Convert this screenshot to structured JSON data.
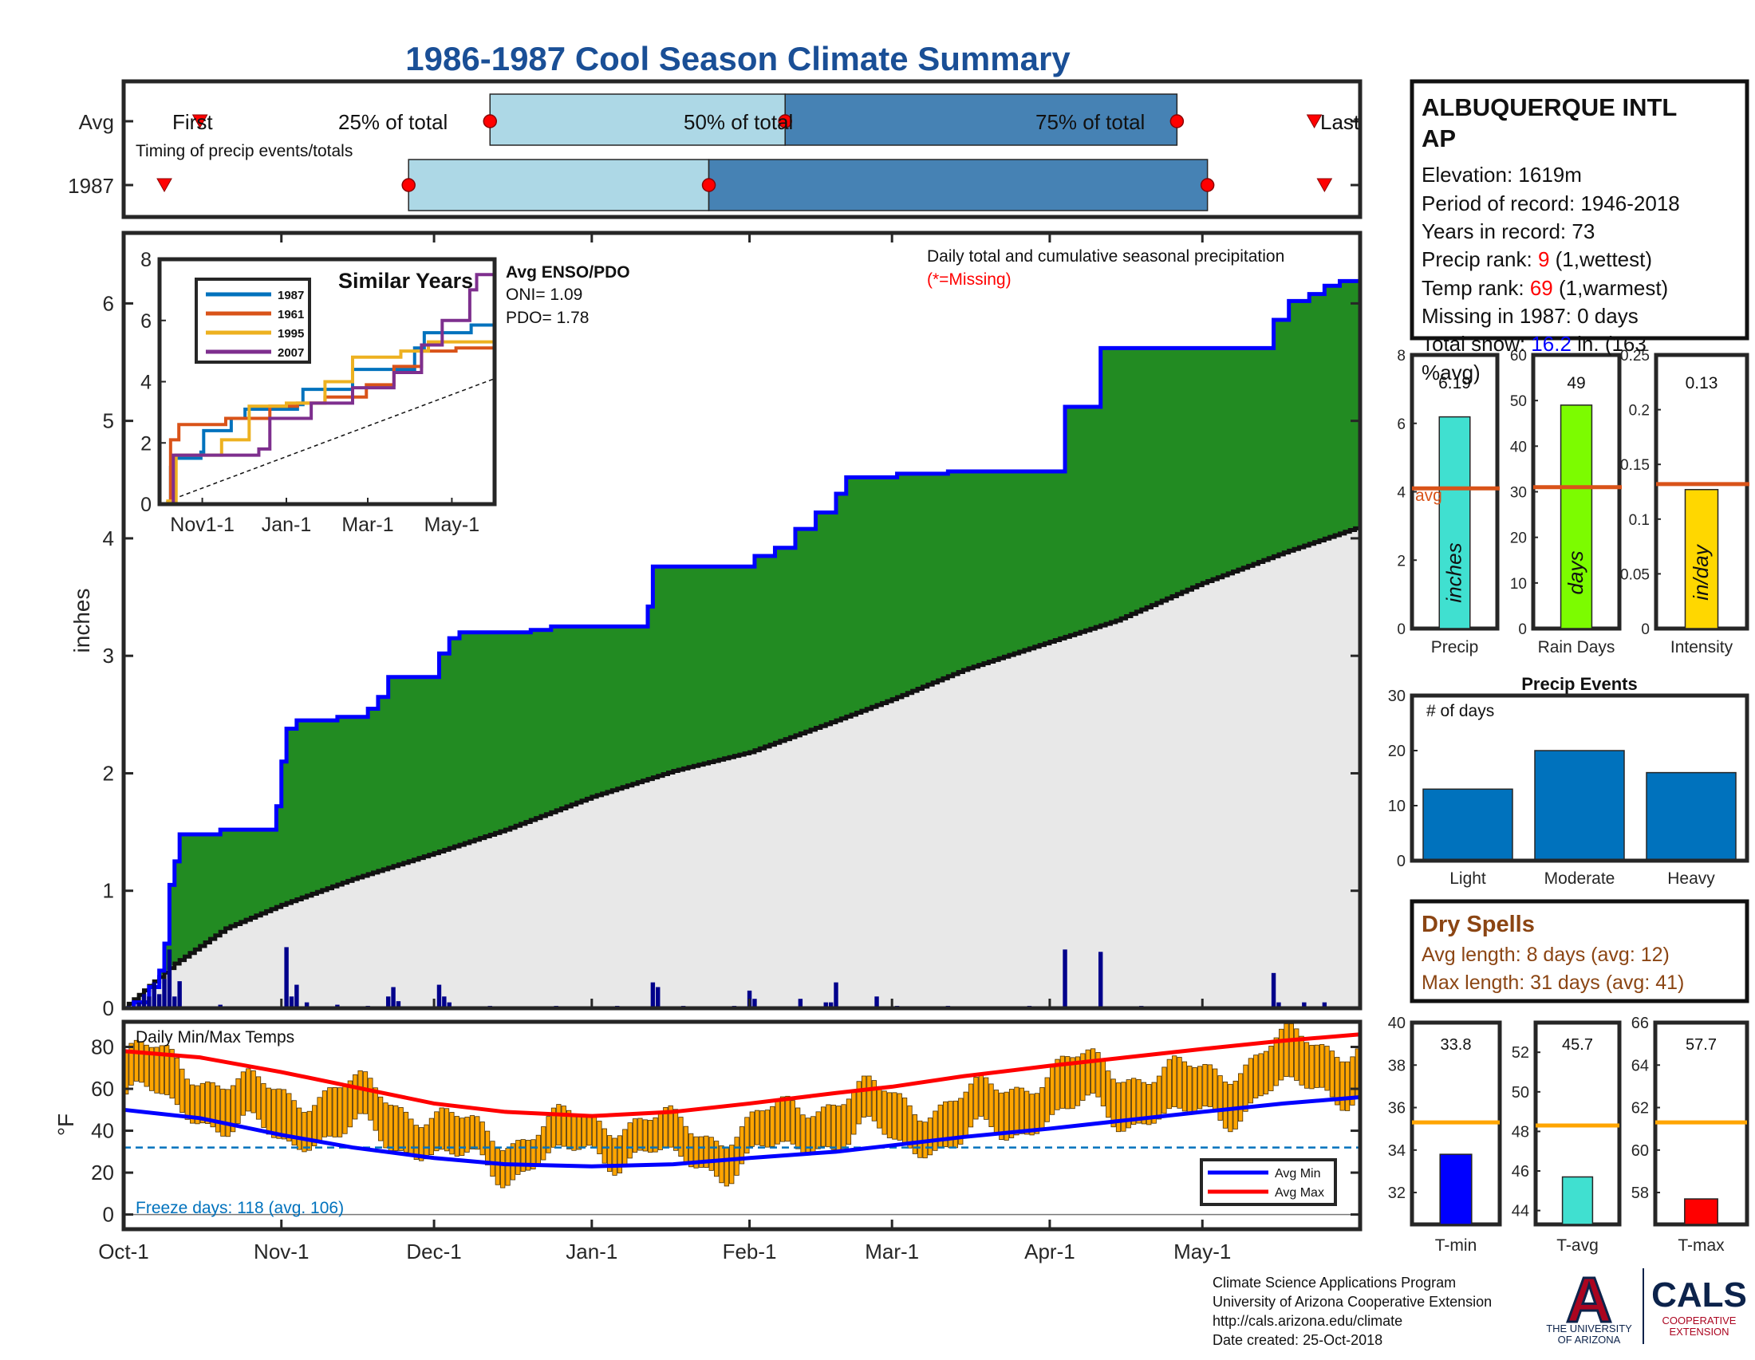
{
  "title": "1986-1987 Cool Season Climate Summary",
  "colors": {
    "title": "#1a4f96",
    "light_blue": "#add8e6",
    "steel_blue": "#4682b4",
    "green": "#228b22",
    "grey_fill": "#e8e8e8",
    "blue_line": "#0000ff",
    "bar_blue": "#00008b",
    "avg_orange": "#d95319",
    "orange": "#ffa500",
    "red_text": "#ff0000",
    "dry_brown": "#8b4513",
    "cals_navy": "#0c234b",
    "ua_red": "#ab0520"
  },
  "timing": {
    "label": "Timing of precip events/totals",
    "rows": [
      "Avg",
      "1987"
    ],
    "first_label": "First",
    "last_label": "Last",
    "pct_labels": [
      "25% of total",
      "50% of total",
      "75% of total"
    ],
    "avg_days": {
      "first": 15,
      "p25": 72,
      "p50": 130,
      "p75": 207,
      "last": 234
    },
    "yr_days": {
      "first": 8,
      "p25": 56,
      "p50": 115,
      "p75": 213,
      "last": 236
    }
  },
  "main_chart": {
    "ylabel": "inches",
    "series_label": "Daily total and cumulative seasonal precipitation",
    "missing_note": "(*=Missing)",
    "yticks": [
      0,
      1,
      2,
      3,
      4,
      5,
      6
    ],
    "ylim": [
      0,
      6.6
    ],
    "xlim": [
      0,
      243
    ],
    "xticks": [
      {
        "label": "Oct-1",
        "day": 0
      },
      {
        "label": "Nov-1",
        "day": 31
      },
      {
        "label": "Dec-1",
        "day": 61
      },
      {
        "label": "Jan-1",
        "day": 92
      },
      {
        "label": "Feb-1",
        "day": 123
      },
      {
        "label": "Mar-1",
        "day": 151
      },
      {
        "label": "Apr-1",
        "day": 182
      },
      {
        "label": "May-1",
        "day": 212
      }
    ],
    "cumulative_1987": [
      [
        0,
        0
      ],
      [
        2,
        0.05
      ],
      [
        5,
        0.18
      ],
      [
        7,
        0.32
      ],
      [
        8,
        0.55
      ],
      [
        9,
        1.05
      ],
      [
        10,
        1.25
      ],
      [
        11,
        1.48
      ],
      [
        18,
        1.48
      ],
      [
        19,
        1.52
      ],
      [
        28,
        1.52
      ],
      [
        30,
        1.72
      ],
      [
        31,
        2.1
      ],
      [
        32,
        2.38
      ],
      [
        34,
        2.45
      ],
      [
        42,
        2.48
      ],
      [
        48,
        2.55
      ],
      [
        50,
        2.65
      ],
      [
        52,
        2.82
      ],
      [
        60,
        2.82
      ],
      [
        62,
        3.02
      ],
      [
        64,
        3.15
      ],
      [
        66,
        3.2
      ],
      [
        75,
        3.2
      ],
      [
        80,
        3.22
      ],
      [
        84,
        3.25
      ],
      [
        100,
        3.25
      ],
      [
        103,
        3.42
      ],
      [
        104,
        3.76
      ],
      [
        118,
        3.76
      ],
      [
        124,
        3.85
      ],
      [
        128,
        3.92
      ],
      [
        132,
        4.08
      ],
      [
        136,
        4.22
      ],
      [
        140,
        4.38
      ],
      [
        142,
        4.52
      ],
      [
        152,
        4.55
      ],
      [
        162,
        4.57
      ],
      [
        174,
        4.57
      ],
      [
        184,
        4.57
      ],
      [
        185,
        5.12
      ],
      [
        191,
        5.12
      ],
      [
        192,
        5.62
      ],
      [
        225,
        5.62
      ],
      [
        226,
        5.86
      ],
      [
        229,
        6.02
      ],
      [
        233,
        6.08
      ],
      [
        236,
        6.15
      ],
      [
        239,
        6.19
      ],
      [
        243,
        6.19
      ]
    ],
    "average_cumulative": [
      [
        0,
        0
      ],
      [
        10,
        0.38
      ],
      [
        20,
        0.68
      ],
      [
        31,
        0.88
      ],
      [
        45,
        1.1
      ],
      [
        61,
        1.32
      ],
      [
        75,
        1.52
      ],
      [
        92,
        1.8
      ],
      [
        108,
        2.02
      ],
      [
        123,
        2.18
      ],
      [
        140,
        2.45
      ],
      [
        151,
        2.63
      ],
      [
        165,
        2.88
      ],
      [
        182,
        3.12
      ],
      [
        195,
        3.3
      ],
      [
        212,
        3.62
      ],
      [
        228,
        3.88
      ],
      [
        243,
        4.1
      ]
    ],
    "daily_bars": [
      [
        1,
        0.02
      ],
      [
        3,
        0.05
      ],
      [
        4,
        0.12
      ],
      [
        5,
        0.1
      ],
      [
        6,
        0.22
      ],
      [
        7,
        0.12
      ],
      [
        8,
        0.25
      ],
      [
        9,
        0.5
      ],
      [
        10,
        0.1
      ],
      [
        11,
        0.23
      ],
      [
        19,
        0.03
      ],
      [
        32,
        0.52
      ],
      [
        33,
        0.1
      ],
      [
        34,
        0.2
      ],
      [
        36,
        0.05
      ],
      [
        42,
        0.03
      ],
      [
        48,
        0.02
      ],
      [
        52,
        0.1
      ],
      [
        53,
        0.18
      ],
      [
        54,
        0.06
      ],
      [
        62,
        0.2
      ],
      [
        63,
        0.1
      ],
      [
        64,
        0.05
      ],
      [
        72,
        0.02
      ],
      [
        85,
        0.02
      ],
      [
        97,
        0.02
      ],
      [
        104,
        0.22
      ],
      [
        105,
        0.18
      ],
      [
        110,
        0.02
      ],
      [
        120,
        0.02
      ],
      [
        123,
        0.15
      ],
      [
        124,
        0.08
      ],
      [
        133,
        0.08
      ],
      [
        138,
        0.05
      ],
      [
        139,
        0.05
      ],
      [
        140,
        0.22
      ],
      [
        148,
        0.1
      ],
      [
        152,
        0.02
      ],
      [
        162,
        0.02
      ],
      [
        178,
        0.02
      ],
      [
        185,
        0.5
      ],
      [
        192,
        0.48
      ],
      [
        200,
        0.02
      ],
      [
        226,
        0.3
      ],
      [
        227,
        0.05
      ],
      [
        232,
        0.05
      ],
      [
        236,
        0.05
      ]
    ]
  },
  "similar_years": {
    "title": "Similar Years",
    "legend": [
      "1987",
      "1961",
      "1995",
      "2007"
    ],
    "line_colors": [
      "#0072bd",
      "#d95319",
      "#edb120",
      "#7e2f8e"
    ],
    "yticks": [
      0,
      2,
      4,
      6,
      8
    ],
    "ylim": [
      0,
      8
    ],
    "xticks": [
      {
        "label": "Nov1-1",
        "day": 31
      },
      {
        "label": "Jan-1",
        "day": 92
      },
      {
        "label": "Mar-1",
        "day": 151
      },
      {
        "label": "May-1",
        "day": 212
      }
    ],
    "xlim": [
      0,
      243
    ],
    "series": [
      [
        [
          0,
          0
        ],
        [
          8,
          1.2
        ],
        [
          11,
          1.5
        ],
        [
          30,
          1.7
        ],
        [
          32,
          2.4
        ],
        [
          52,
          2.8
        ],
        [
          62,
          3.1
        ],
        [
          100,
          3.25
        ],
        [
          104,
          3.75
        ],
        [
          140,
          4.4
        ],
        [
          185,
          5.1
        ],
        [
          192,
          5.6
        ],
        [
          226,
          5.85
        ],
        [
          243,
          6.2
        ]
      ],
      [
        [
          0,
          0
        ],
        [
          8,
          2.1
        ],
        [
          14,
          2.6
        ],
        [
          38,
          2.6
        ],
        [
          48,
          2.8
        ],
        [
          80,
          3.2
        ],
        [
          100,
          3.3
        ],
        [
          120,
          3.5
        ],
        [
          150,
          3.9
        ],
        [
          170,
          4.5
        ],
        [
          190,
          5.0
        ],
        [
          215,
          5.1
        ],
        [
          243,
          5.1
        ]
      ],
      [
        [
          0,
          0
        ],
        [
          6,
          0.1
        ],
        [
          12,
          1.6
        ],
        [
          30,
          1.6
        ],
        [
          45,
          2.1
        ],
        [
          65,
          3.2
        ],
        [
          92,
          3.3
        ],
        [
          120,
          4.0
        ],
        [
          140,
          4.8
        ],
        [
          175,
          5.0
        ],
        [
          195,
          5.3
        ],
        [
          215,
          5.3
        ],
        [
          243,
          5.5
        ]
      ],
      [
        [
          0,
          0
        ],
        [
          10,
          1.6
        ],
        [
          40,
          1.6
        ],
        [
          72,
          1.8
        ],
        [
          80,
          2.8
        ],
        [
          95,
          2.8
        ],
        [
          110,
          3.3
        ],
        [
          140,
          3.8
        ],
        [
          170,
          4.3
        ],
        [
          190,
          5.2
        ],
        [
          205,
          6.0
        ],
        [
          225,
          7.0
        ],
        [
          230,
          7.5
        ],
        [
          243,
          7.9
        ]
      ]
    ],
    "avg_line": [
      [
        0,
        0
      ],
      [
        243,
        4.1
      ]
    ]
  },
  "enso": {
    "title": "Avg ENSO/PDO",
    "oni": "ONI= 1.09",
    "pdo": "PDO= 1.78"
  },
  "station": {
    "name_line1": "ALBUQUERQUE INTL",
    "name_line2": "AP",
    "elevation": "Elevation: 1619m",
    "period": "Period of record: 1946-2018",
    "years": "Years in record: 73",
    "precip_rank_label": "Precip rank: ",
    "precip_rank_value": "9",
    "precip_rank_note": " (1,wettest)",
    "temp_rank_label": "Temp rank: ",
    "temp_rank_value": "69",
    "temp_rank_note": " (1,warmest)",
    "missing": "Missing in 1987: 0 days",
    "snow_label": "Total snow: ",
    "snow_value": "16.2",
    "snow_note": " in. (163",
    "snow_note2": "%avg)"
  },
  "precip_stats": [
    {
      "label": "Precip",
      "unit": "inches",
      "value": 6.19,
      "value_text": "6.19",
      "avg": 4.1,
      "avg_label": "avg",
      "ylim": [
        0,
        8
      ],
      "yticks": [
        "0",
        "2",
        "4",
        "6",
        "8"
      ],
      "color": "#40e0d0"
    },
    {
      "label": "Rain Days",
      "unit": "days",
      "value": 49,
      "value_text": "49",
      "avg": 31,
      "ylim": [
        0,
        60
      ],
      "yticks": [
        "0",
        "10",
        "20",
        "30",
        "40",
        "50",
        "60"
      ],
      "color": "#7cfc00"
    },
    {
      "label": "Intensity",
      "unit": "in/day",
      "value": 0.127,
      "value_text": "0.13",
      "avg": 0.132,
      "ylim": [
        0,
        0.25
      ],
      "yticks": [
        "0",
        "0.05",
        "0.1",
        "0.15",
        "0.2",
        "0.25"
      ],
      "color": "#ffd700"
    }
  ],
  "precip_events": {
    "title": "Precip Events",
    "ylabel": "# of days",
    "categories": [
      "Light",
      "Moderate",
      "Heavy"
    ],
    "values": [
      13,
      20,
      16
    ],
    "ylim": [
      0,
      30
    ],
    "yticks": [
      "0",
      "10",
      "20",
      "30"
    ],
    "color": "#0072bd"
  },
  "dry_spells": {
    "title": "Dry Spells",
    "avg_length": "Avg length: 8 days (avg: 12)",
    "max_length": "Max length: 31 days (avg: 41)"
  },
  "temp_chart": {
    "title": "Daily Min/Max Temps",
    "ylabel": "°F",
    "yticks": [
      0,
      20,
      40,
      60,
      80
    ],
    "ylim": [
      -7,
      92
    ],
    "freeze_line": 32,
    "freeze_text": "Freeze days: 118 (avg. 106)",
    "legend": [
      "Avg Min",
      "Avg Max"
    ],
    "avg_max": [
      [
        0,
        78
      ],
      [
        15,
        75
      ],
      [
        31,
        68
      ],
      [
        45,
        61
      ],
      [
        61,
        53
      ],
      [
        75,
        49
      ],
      [
        92,
        47
      ],
      [
        108,
        49
      ],
      [
        123,
        53
      ],
      [
        140,
        58
      ],
      [
        151,
        61
      ],
      [
        165,
        66
      ],
      [
        182,
        71
      ],
      [
        197,
        75
      ],
      [
        212,
        79
      ],
      [
        228,
        83
      ],
      [
        243,
        86
      ]
    ],
    "avg_min": [
      [
        0,
        50
      ],
      [
        15,
        46
      ],
      [
        31,
        38
      ],
      [
        45,
        32
      ],
      [
        61,
        27
      ],
      [
        75,
        24
      ],
      [
        92,
        23
      ],
      [
        108,
        24
      ],
      [
        123,
        27
      ],
      [
        140,
        30
      ],
      [
        151,
        33
      ],
      [
        165,
        37
      ],
      [
        182,
        41
      ],
      [
        197,
        45
      ],
      [
        212,
        49
      ],
      [
        228,
        53
      ],
      [
        243,
        56
      ]
    ]
  },
  "temp_stats": [
    {
      "label": "T-min",
      "value": 33.8,
      "value_text": "33.8",
      "avg": 35.3,
      "ylim": [
        30.5,
        40
      ],
      "yticks": [
        "32",
        "34",
        "36",
        "38",
        "40"
      ],
      "tickvals": [
        32,
        34,
        36,
        38,
        40
      ],
      "color": "#0000ff"
    },
    {
      "label": "T-avg",
      "value": 45.7,
      "value_text": "45.7",
      "avg": 48.3,
      "ylim": [
        43.3,
        53.5
      ],
      "yticks": [
        "44",
        "46",
        "48",
        "50",
        "52"
      ],
      "tickvals": [
        44,
        46,
        48,
        50,
        52
      ],
      "color": "#40e0d0"
    },
    {
      "label": "T-max",
      "value": 57.7,
      "value_text": "57.7",
      "avg": 61.3,
      "ylim": [
        56.5,
        66
      ],
      "yticks": [
        "58",
        "60",
        "62",
        "64",
        "66"
      ],
      "tickvals": [
        58,
        60,
        62,
        64,
        66
      ],
      "color": "#ff0000"
    }
  ],
  "footer": {
    "line1": "Climate Science Applications Program",
    "line2": "University of Arizona Cooperative Extension",
    "line3": "http://cals.arizona.edu/climate",
    "line4": " Date created: 25-Oct-2018",
    "logo_a": "A",
    "logo_ua1": "THE UNIVERSITY",
    "logo_ua2": "OF ARIZONA",
    "logo_cals": "CALS",
    "logo_coop1": "COOPERATIVE",
    "logo_coop2": "EXTENSION"
  }
}
